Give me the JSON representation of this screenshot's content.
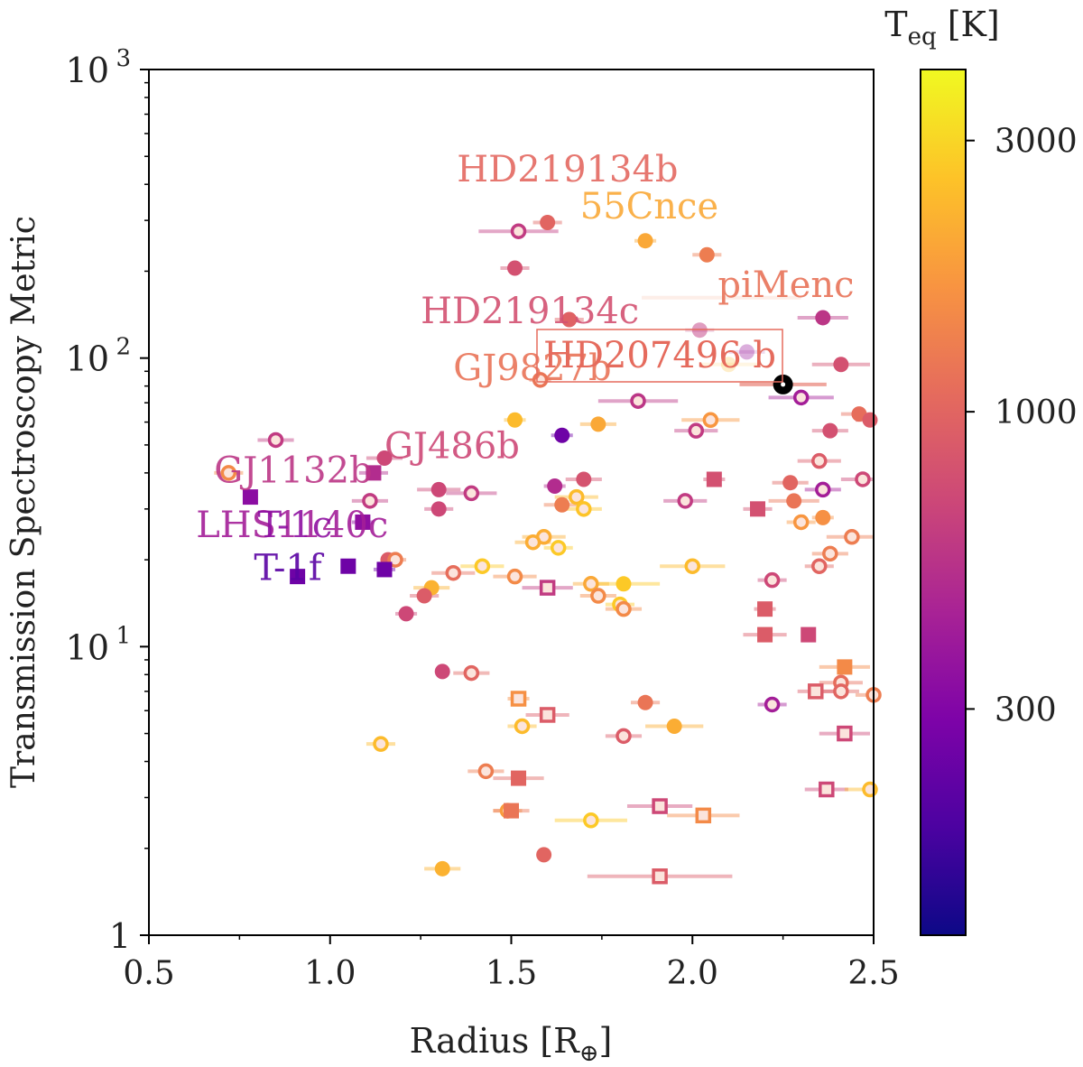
{
  "chart_data": {
    "type": "scatter",
    "xlabel_main": "Radius [R",
    "xlabel_sub": "⊕",
    "xlabel_end": "]",
    "ylabel": "Transmission Spectroscopy Metric",
    "xlim": [
      0.5,
      2.5
    ],
    "ylim": [
      1,
      1000
    ],
    "yscale": "log",
    "x_ticks": [
      {
        "value": 0.5,
        "label": "0.5"
      },
      {
        "value": 1.0,
        "label": "1.0"
      },
      {
        "value": 1.5,
        "label": "1.5"
      },
      {
        "value": 2.0,
        "label": "2.0"
      },
      {
        "value": 2.5,
        "label": "2.5"
      }
    ],
    "y_ticks": [
      {
        "value": 1,
        "base": "1",
        "exp": ""
      },
      {
        "value": 10,
        "base": "10",
        "exp": "1"
      },
      {
        "value": 100,
        "base": "10",
        "exp": "2"
      },
      {
        "value": 1000,
        "base": "10",
        "exp": "3"
      }
    ],
    "colorbar": {
      "title_main": "T",
      "title_sub": "eq",
      "title_end": " [K]",
      "min": 120,
      "max": 4000,
      "ticks": [
        {
          "value": 300,
          "label": "300"
        },
        {
          "value": 1000,
          "label": "1000"
        },
        {
          "value": 3000,
          "label": "3000"
        }
      ]
    },
    "highlight": {
      "name": "HD207496 b",
      "x": 2.25,
      "y": 81,
      "xerr": 0.12
    },
    "labels": [
      {
        "text": "HD219134b",
        "x": 1.35,
        "y": 410,
        "teq": 1030
      },
      {
        "text": "55Cnce",
        "x": 1.69,
        "y": 305,
        "teq": 2000
      },
      {
        "text": "HD219134c",
        "x": 1.25,
        "y": 132,
        "teq": 780
      },
      {
        "text": "piMenc",
        "x": 2.07,
        "y": 163,
        "teq": 1160
      },
      {
        "text": "GJ9827b",
        "x": 1.34,
        "y": 84,
        "teq": 1170
      },
      {
        "text": "GJ486b",
        "x": 1.15,
        "y": 45,
        "teq": 700
      },
      {
        "text": "GJ1132b",
        "x": 0.68,
        "y": 37,
        "teq": 560
      },
      {
        "text": "LHS1140c",
        "x": 0.63,
        "y": 24,
        "teq": 420
      },
      {
        "text": "T-1c",
        "x": 0.8,
        "y": 24,
        "teq": 340
      },
      {
        "text": "T-1f",
        "x": 0.79,
        "y": 17,
        "teq": 210
      }
    ],
    "points": [
      {
        "x": 1.6,
        "y": 295,
        "teq": 1000,
        "m": "o",
        "xerr": 0.04
      },
      {
        "x": 1.52,
        "y": 275,
        "teq": 600,
        "m": "oh",
        "xerr": 0.11
      },
      {
        "x": 1.87,
        "y": 255,
        "teq": 2000,
        "m": "o",
        "xerr": 0.03
      },
      {
        "x": 2.04,
        "y": 228,
        "teq": 1300,
        "m": "o",
        "xerr": 0.04
      },
      {
        "x": 1.51,
        "y": 205,
        "teq": 780,
        "m": "o",
        "xerr": 0.04
      },
      {
        "x": 1.66,
        "y": 136,
        "teq": 960,
        "m": "o",
        "xerr": 0.04
      },
      {
        "x": 2.36,
        "y": 138,
        "teq": 560,
        "m": "o",
        "xerr": 0.07
      },
      {
        "x": 2.15,
        "y": 105,
        "teq": 380,
        "m": "o",
        "xerr": 0.05,
        "a": 0.35
      },
      {
        "x": 2.02,
        "y": 125,
        "teq": 600,
        "m": "o",
        "xerr": 0.04,
        "a": 0.5
      },
      {
        "x": 2.41,
        "y": 95,
        "teq": 780,
        "m": "o",
        "xerr": 0.08
      },
      {
        "x": 1.58,
        "y": 84,
        "teq": 1200,
        "m": "oh",
        "xerr": 0.03
      },
      {
        "x": 1.85,
        "y": 71,
        "teq": 560,
        "m": "oh",
        "xerr": 0.11
      },
      {
        "x": 2.3,
        "y": 73,
        "teq": 420,
        "m": "oh",
        "xerr": 0.09
      },
      {
        "x": 1.51,
        "y": 61,
        "teq": 2400,
        "m": "o",
        "xerr": 0.03
      },
      {
        "x": 1.74,
        "y": 59,
        "teq": 2000,
        "m": "o",
        "xerr": 0.05
      },
      {
        "x": 1.64,
        "y": 54,
        "teq": 250,
        "m": "o",
        "xerr": 0.03
      },
      {
        "x": 2.05,
        "y": 61,
        "teq": 1700,
        "m": "oh",
        "xerr": 0.08
      },
      {
        "x": 2.01,
        "y": 56,
        "teq": 600,
        "m": "oh",
        "xerr": 0.06
      },
      {
        "x": 2.38,
        "y": 56,
        "teq": 780,
        "m": "o",
        "xerr": 0.05
      },
      {
        "x": 2.46,
        "y": 64,
        "teq": 1100,
        "m": "o",
        "xerr": 0.05
      },
      {
        "x": 2.49,
        "y": 61,
        "teq": 900,
        "m": "o",
        "xerr": 0.04
      },
      {
        "x": 0.85,
        "y": 52,
        "teq": 600,
        "m": "oh",
        "xerr": 0.05
      },
      {
        "x": 1.15,
        "y": 45,
        "teq": 700,
        "m": "o",
        "xerr": 0.05
      },
      {
        "x": 1.12,
        "y": 40,
        "teq": 500,
        "m": "s",
        "xerr": 0.04
      },
      {
        "x": 0.72,
        "y": 40,
        "teq": 1500,
        "m": "oh",
        "xerr": 0.04
      },
      {
        "x": 2.35,
        "y": 44,
        "teq": 900,
        "m": "oh",
        "xerr": 0.06
      },
      {
        "x": 2.06,
        "y": 38,
        "teq": 780,
        "m": "s",
        "xerr": 0.03
      },
      {
        "x": 1.7,
        "y": 38,
        "teq": 800,
        "m": "o",
        "xerr": 0.05
      },
      {
        "x": 1.62,
        "y": 36,
        "teq": 500,
        "m": "o",
        "xerr": 0.03
      },
      {
        "x": 2.27,
        "y": 37,
        "teq": 1000,
        "m": "o",
        "xerr": 0.05
      },
      {
        "x": 2.36,
        "y": 35,
        "teq": 420,
        "m": "oh",
        "xerr": 0.05
      },
      {
        "x": 2.47,
        "y": 38,
        "teq": 700,
        "m": "oh",
        "xerr": 0.06
      },
      {
        "x": 1.3,
        "y": 35,
        "teq": 700,
        "m": "o",
        "xerr": 0.06
      },
      {
        "x": 1.39,
        "y": 34,
        "teq": 600,
        "m": "oh",
        "xerr": 0.07
      },
      {
        "x": 1.11,
        "y": 32,
        "teq": 600,
        "m": "oh",
        "xerr": 0.05
      },
      {
        "x": 1.68,
        "y": 33,
        "teq": 2400,
        "m": "oh",
        "xerr": 0.06
      },
      {
        "x": 1.7,
        "y": 30,
        "teq": 2600,
        "m": "oh",
        "xerr": 0.05
      },
      {
        "x": 1.64,
        "y": 31,
        "teq": 1300,
        "m": "o",
        "xerr": 0.05
      },
      {
        "x": 1.98,
        "y": 32,
        "teq": 600,
        "m": "oh",
        "xerr": 0.06
      },
      {
        "x": 2.28,
        "y": 32,
        "teq": 1200,
        "m": "o",
        "xerr": 0.07
      },
      {
        "x": 2.18,
        "y": 30,
        "teq": 780,
        "m": "s",
        "xerr": 0.04
      },
      {
        "x": 1.3,
        "y": 30,
        "teq": 700,
        "m": "o",
        "xerr": 0.04
      },
      {
        "x": 0.78,
        "y": 33,
        "teq": 330,
        "m": "s",
        "xerr": 0.0
      },
      {
        "x": 1.09,
        "y": 27,
        "teq": 340,
        "m": "s",
        "xerr": 0.03
      },
      {
        "x": 2.3,
        "y": 27,
        "teq": 1700,
        "m": "oh",
        "xerr": 0.04
      },
      {
        "x": 2.36,
        "y": 28,
        "teq": 1600,
        "m": "o",
        "xerr": 0.03
      },
      {
        "x": 1.59,
        "y": 24,
        "teq": 2100,
        "m": "oh",
        "xerr": 0.06
      },
      {
        "x": 1.56,
        "y": 23,
        "teq": 2100,
        "m": "oh",
        "xerr": 0.05
      },
      {
        "x": 2.44,
        "y": 24,
        "teq": 1300,
        "m": "oh",
        "xerr": 0.07
      },
      {
        "x": 1.63,
        "y": 22,
        "teq": 2700,
        "m": "oh",
        "xerr": 0.04
      },
      {
        "x": 2.38,
        "y": 21,
        "teq": 1300,
        "m": "oh",
        "xerr": 0.05
      },
      {
        "x": 1.16,
        "y": 20,
        "teq": 900,
        "m": "o",
        "xerr": 0.02
      },
      {
        "x": 1.18,
        "y": 20,
        "teq": 1300,
        "m": "oh",
        "xerr": 0.03
      },
      {
        "x": 2.35,
        "y": 19,
        "teq": 1000,
        "m": "oh",
        "xerr": 0.04
      },
      {
        "x": 1.42,
        "y": 19,
        "teq": 2700,
        "m": "oh",
        "xerr": 0.06
      },
      {
        "x": 2.0,
        "y": 19,
        "teq": 2400,
        "m": "oh",
        "xerr": 0.09
      },
      {
        "x": 1.05,
        "y": 19,
        "teq": 250,
        "m": "s",
        "xerr": 0.02
      },
      {
        "x": 1.15,
        "y": 18.5,
        "teq": 250,
        "m": "s",
        "xerr": 0.03
      },
      {
        "x": 0.91,
        "y": 17.5,
        "teq": 250,
        "m": "s",
        "xerr": 0.02
      },
      {
        "x": 1.34,
        "y": 18,
        "teq": 1100,
        "m": "oh",
        "xerr": 0.06
      },
      {
        "x": 1.51,
        "y": 17.5,
        "teq": 1500,
        "m": "oh",
        "xerr": 0.06
      },
      {
        "x": 2.22,
        "y": 17,
        "teq": 700,
        "m": "oh",
        "xerr": 0.04
      },
      {
        "x": 1.6,
        "y": 16,
        "teq": 600,
        "m": "sh",
        "xerr": 0.07
      },
      {
        "x": 1.72,
        "y": 16.5,
        "teq": 2000,
        "m": "oh",
        "xerr": 0.05
      },
      {
        "x": 1.81,
        "y": 16.5,
        "teq": 2700,
        "m": "o",
        "xerr": 0.1
      },
      {
        "x": 1.28,
        "y": 16,
        "teq": 2200,
        "m": "o",
        "xerr": 0.05
      },
      {
        "x": 1.74,
        "y": 15,
        "teq": 1500,
        "m": "oh",
        "xerr": 0.05
      },
      {
        "x": 1.26,
        "y": 15,
        "teq": 900,
        "m": "o",
        "xerr": 0.04
      },
      {
        "x": 1.8,
        "y": 14,
        "teq": 2700,
        "m": "oh",
        "xerr": 0.04
      },
      {
        "x": 1.81,
        "y": 13.5,
        "teq": 1500,
        "m": "oh",
        "xerr": 0.05
      },
      {
        "x": 1.21,
        "y": 13,
        "teq": 700,
        "m": "o",
        "xerr": 0.03
      },
      {
        "x": 2.2,
        "y": 13.5,
        "teq": 900,
        "m": "s",
        "xerr": 0.03
      },
      {
        "x": 2.2,
        "y": 11,
        "teq": 900,
        "m": "s",
        "xerr": 0.06
      },
      {
        "x": 2.32,
        "y": 11,
        "teq": 700,
        "m": "s",
        "xerr": 0.0
      },
      {
        "x": 1.31,
        "y": 8.2,
        "teq": 700,
        "m": "o",
        "xerr": 0.0
      },
      {
        "x": 1.39,
        "y": 8.1,
        "teq": 1000,
        "m": "oh",
        "xerr": 0.05
      },
      {
        "x": 2.42,
        "y": 8.5,
        "teq": 1500,
        "m": "s",
        "xerr": 0.07
      },
      {
        "x": 2.41,
        "y": 7.5,
        "teq": 1100,
        "m": "oh",
        "xerr": 0.06
      },
      {
        "x": 2.41,
        "y": 7.0,
        "teq": 1000,
        "m": "oh",
        "xerr": 0.05
      },
      {
        "x": 2.34,
        "y": 7.0,
        "teq": 900,
        "m": "sh",
        "xerr": 0.05
      },
      {
        "x": 2.5,
        "y": 6.8,
        "teq": 1300,
        "m": "oh",
        "xerr": 0.05
      },
      {
        "x": 2.22,
        "y": 6.3,
        "teq": 420,
        "m": "oh",
        "xerr": 0.04
      },
      {
        "x": 1.52,
        "y": 6.6,
        "teq": 1600,
        "m": "sh",
        "xerr": 0.03
      },
      {
        "x": 1.87,
        "y": 6.4,
        "teq": 1200,
        "m": "o",
        "xerr": 0.04
      },
      {
        "x": 1.6,
        "y": 5.8,
        "teq": 900,
        "m": "sh",
        "xerr": 0.06
      },
      {
        "x": 1.53,
        "y": 5.3,
        "teq": 2400,
        "m": "oh",
        "xerr": 0.04
      },
      {
        "x": 1.95,
        "y": 5.3,
        "teq": 2100,
        "m": "o",
        "xerr": 0.08
      },
      {
        "x": 1.81,
        "y": 4.9,
        "teq": 900,
        "m": "oh",
        "xerr": 0.05
      },
      {
        "x": 2.42,
        "y": 5.0,
        "teq": 700,
        "m": "sh",
        "xerr": 0.07
      },
      {
        "x": 1.14,
        "y": 4.6,
        "teq": 2400,
        "m": "oh",
        "xerr": 0.04
      },
      {
        "x": 1.43,
        "y": 3.7,
        "teq": 1300,
        "m": "oh",
        "xerr": 0.05
      },
      {
        "x": 1.52,
        "y": 3.5,
        "teq": 1000,
        "m": "s",
        "xerr": 0.07
      },
      {
        "x": 2.37,
        "y": 3.2,
        "teq": 700,
        "m": "sh",
        "xerr": 0.06
      },
      {
        "x": 2.49,
        "y": 3.2,
        "teq": 2400,
        "m": "oh",
        "xerr": 0.07
      },
      {
        "x": 1.91,
        "y": 2.8,
        "teq": 700,
        "m": "sh",
        "xerr": 0.09
      },
      {
        "x": 2.03,
        "y": 2.6,
        "teq": 1500,
        "m": "sh",
        "xerr": 0.1
      },
      {
        "x": 1.49,
        "y": 2.7,
        "teq": 1800,
        "m": "oh",
        "xerr": 0.04
      },
      {
        "x": 1.5,
        "y": 2.7,
        "teq": 1200,
        "m": "s",
        "xerr": 0.05
      },
      {
        "x": 1.72,
        "y": 2.5,
        "teq": 2700,
        "m": "oh",
        "xerr": 0.1
      },
      {
        "x": 1.59,
        "y": 1.9,
        "teq": 1000,
        "m": "o",
        "xerr": 0.0
      },
      {
        "x": 1.31,
        "y": 1.7,
        "teq": 2200,
        "m": "o",
        "xerr": 0.05
      },
      {
        "x": 1.91,
        "y": 1.6,
        "teq": 900,
        "m": "sh",
        "xerr": 0.2
      },
      {
        "x": 2.08,
        "y": 162,
        "teq": 1300,
        "m": "o",
        "xerr": 0.22,
        "a": 0.0
      },
      {
        "x": 2.1,
        "y": 95,
        "teq": 2400,
        "m": "o",
        "xerr": 0.08,
        "a": 0.25
      }
    ]
  }
}
